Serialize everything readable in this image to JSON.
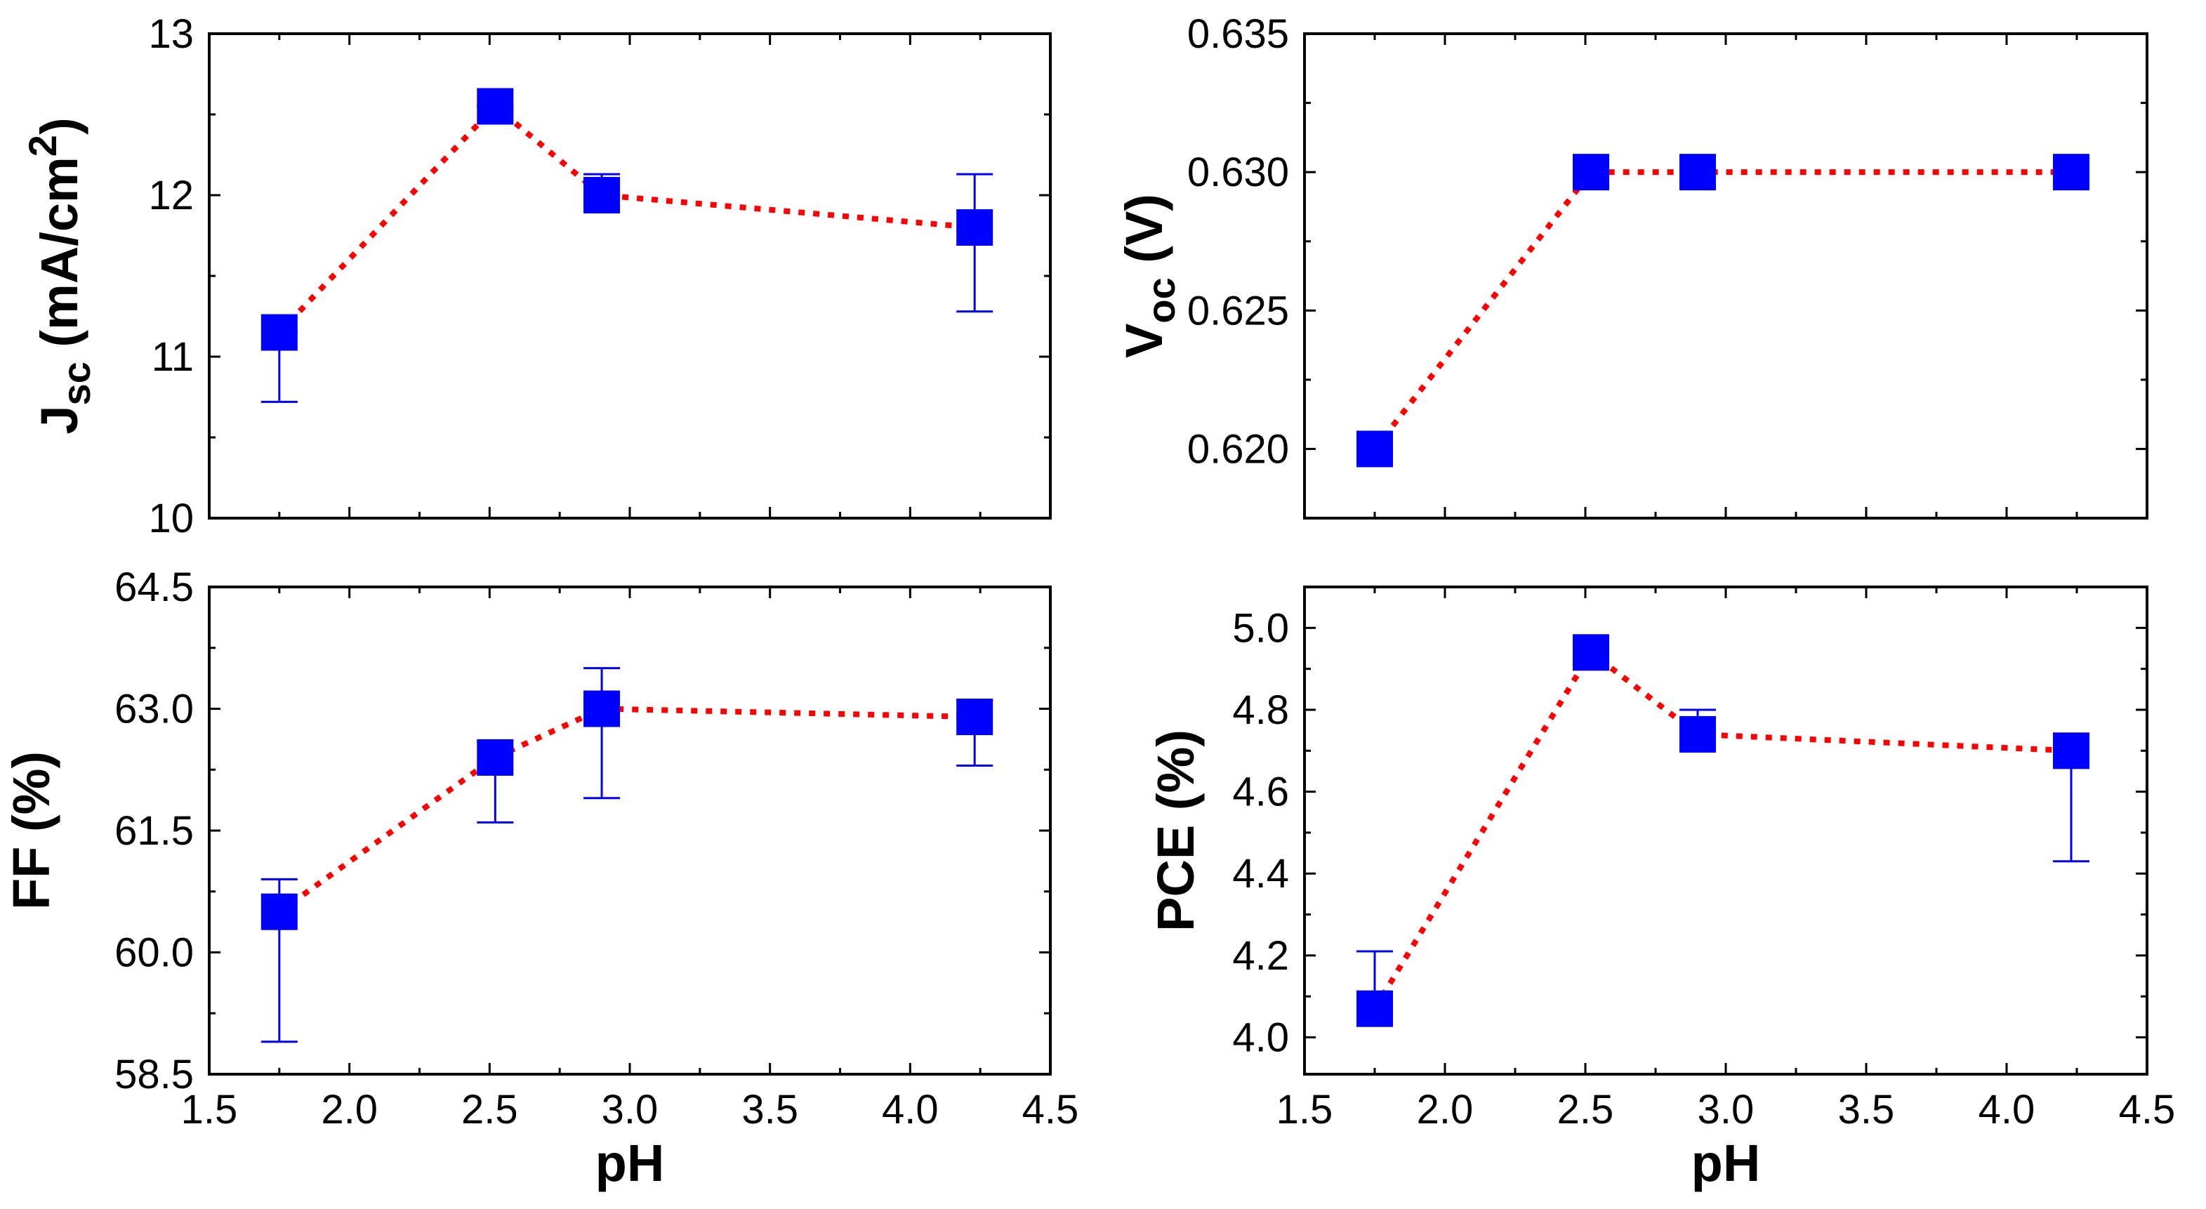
{
  "figure": {
    "shared_x_title": "pH"
  },
  "chart_data": [
    {
      "type": "scatter",
      "panel": "top-left",
      "x": [
        1.75,
        2.52,
        2.9,
        4.23
      ],
      "series": [
        {
          "name": "Jsc",
          "values": [
            11.15,
            12.55,
            12.0,
            11.8
          ]
        }
      ],
      "error_upper": [
        11.15,
        12.55,
        12.13,
        12.13
      ],
      "error_lower": [
        10.72,
        12.55,
        12.0,
        11.28
      ],
      "xlabel": "pH",
      "ylabel_main": "J",
      "ylabel_sub": "sc",
      "ylabel_rest": " (mA/cm",
      "ylabel_sup": "2",
      "ylabel_end": ")",
      "xlim": [
        1.5,
        4.5
      ],
      "ylim": [
        10,
        13
      ],
      "xticks": [
        "1.5",
        "2.0",
        "2.5",
        "3.0",
        "3.5",
        "4.0",
        "4.5"
      ],
      "xtick_values": [
        1.5,
        2.0,
        2.5,
        3.0,
        3.5,
        4.0,
        4.5
      ],
      "yticks": [
        "10",
        "11",
        "12",
        "13"
      ],
      "ytick_values": [
        10,
        11,
        12,
        13
      ],
      "show_xtick_labels": false,
      "marker_color": "#0000ff",
      "line_color": "#ff0000",
      "line_style": "dotted"
    },
    {
      "type": "scatter",
      "panel": "top-right",
      "x": [
        1.75,
        2.52,
        2.9,
        4.23
      ],
      "series": [
        {
          "name": "Voc",
          "values": [
            0.62,
            0.63,
            0.63,
            0.63
          ]
        }
      ],
      "error_upper": [
        0.62,
        0.63,
        0.63,
        0.63
      ],
      "error_lower": [
        0.62,
        0.63,
        0.63,
        0.63
      ],
      "xlabel": "pH",
      "ylabel_main": "V",
      "ylabel_sub": "oc",
      "ylabel_rest": " (V)",
      "ylabel_sup": "",
      "ylabel_end": "",
      "xlim": [
        1.5,
        4.5
      ],
      "ylim": [
        0.6175,
        0.635
      ],
      "xticks": [
        "1.5",
        "2.0",
        "2.5",
        "3.0",
        "3.5",
        "4.0",
        "4.5"
      ],
      "xtick_values": [
        1.5,
        2.0,
        2.5,
        3.0,
        3.5,
        4.0,
        4.5
      ],
      "yticks": [
        "0.620",
        "0.625",
        "0.630",
        "0.635"
      ],
      "ytick_values": [
        0.62,
        0.625,
        0.63,
        0.635
      ],
      "show_xtick_labels": false,
      "marker_color": "#0000ff",
      "line_color": "#ff0000",
      "line_style": "dotted"
    },
    {
      "type": "scatter",
      "panel": "bottom-left",
      "x": [
        1.75,
        2.52,
        2.9,
        4.23
      ],
      "series": [
        {
          "name": "FF",
          "values": [
            60.5,
            62.4,
            63.0,
            62.9
          ]
        }
      ],
      "error_upper": [
        60.9,
        62.6,
        63.5,
        63.1
      ],
      "error_lower": [
        58.9,
        61.6,
        61.9,
        62.3
      ],
      "xlabel": "pH",
      "ylabel_main": "FF (%)",
      "ylabel_sub": "",
      "ylabel_rest": "",
      "ylabel_sup": "",
      "ylabel_end": "",
      "xlim": [
        1.5,
        4.5
      ],
      "ylim": [
        58.5,
        64.5
      ],
      "xticks": [
        "1.5",
        "2.0",
        "2.5",
        "3.0",
        "3.5",
        "4.0",
        "4.5"
      ],
      "xtick_values": [
        1.5,
        2.0,
        2.5,
        3.0,
        3.5,
        4.0,
        4.5
      ],
      "yticks": [
        "58.5",
        "60.0",
        "61.5",
        "63.0",
        "64.5"
      ],
      "ytick_values": [
        58.5,
        60.0,
        61.5,
        63.0,
        64.5
      ],
      "show_xtick_labels": true,
      "marker_color": "#0000ff",
      "line_color": "#ff0000",
      "line_style": "dotted"
    },
    {
      "type": "scatter",
      "panel": "bottom-right",
      "x": [
        1.75,
        2.52,
        2.9,
        4.23
      ],
      "series": [
        {
          "name": "PCE",
          "values": [
            4.07,
            4.94,
            4.74,
            4.7
          ]
        }
      ],
      "error_upper": [
        4.21,
        4.94,
        4.8,
        4.74
      ],
      "error_lower": [
        4.03,
        4.94,
        4.74,
        4.43
      ],
      "xlabel": "pH",
      "ylabel_main": "PCE (%)",
      "ylabel_sub": "",
      "ylabel_rest": "",
      "ylabel_sup": "",
      "ylabel_end": "",
      "xlim": [
        1.5,
        4.5
      ],
      "ylim": [
        3.91,
        5.1
      ],
      "xticks": [
        "1.5",
        "2.0",
        "2.5",
        "3.0",
        "3.5",
        "4.0",
        "4.5"
      ],
      "xtick_values": [
        1.5,
        2.0,
        2.5,
        3.0,
        3.5,
        4.0,
        4.5
      ],
      "yticks": [
        "4.0",
        "4.2",
        "4.4",
        "4.6",
        "4.8",
        "5.0"
      ],
      "ytick_values": [
        4.0,
        4.2,
        4.4,
        4.6,
        4.8,
        5.0
      ],
      "show_xtick_labels": true,
      "marker_color": "#0000ff",
      "line_color": "#ff0000",
      "line_style": "dotted"
    }
  ]
}
